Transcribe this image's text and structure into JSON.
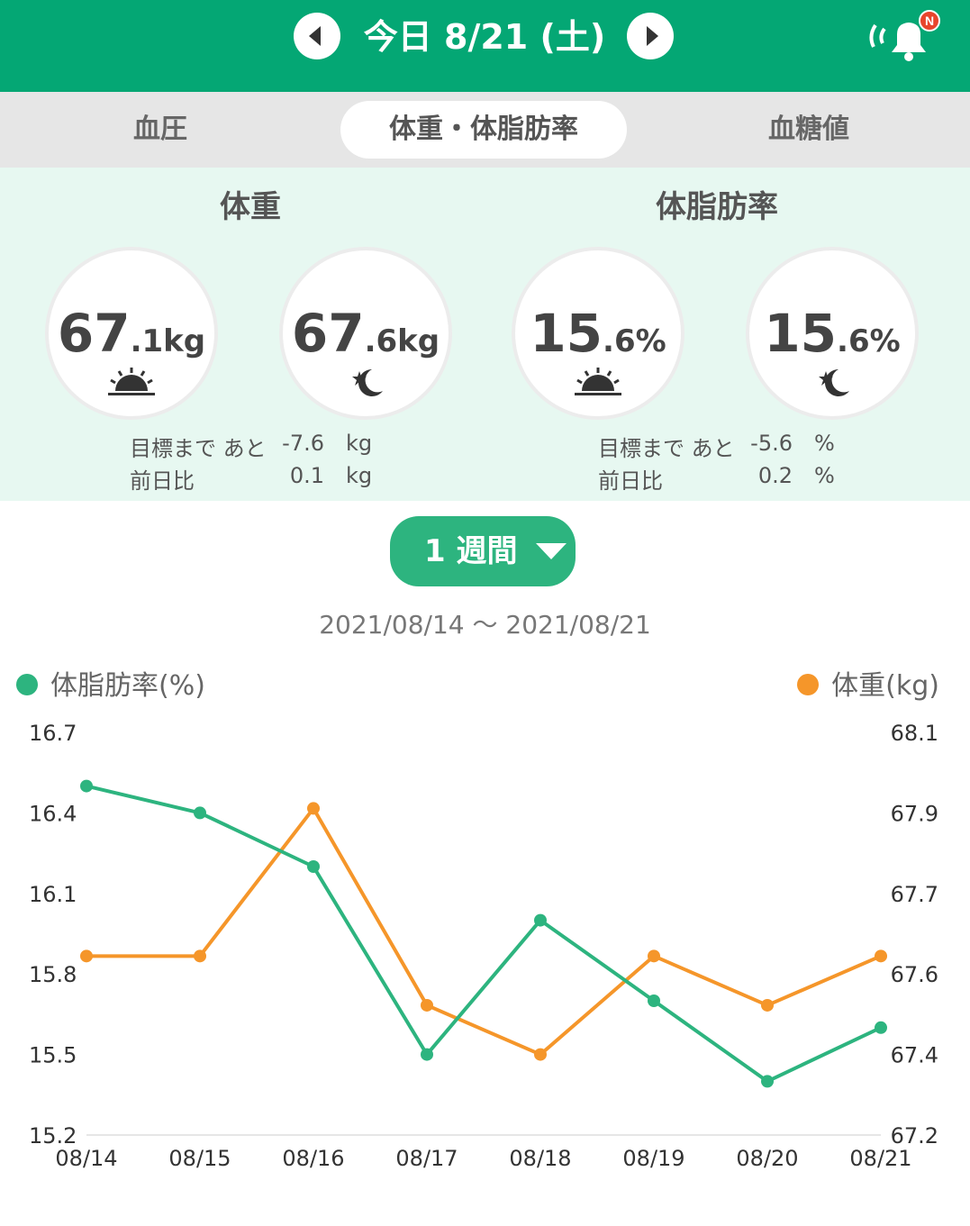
{
  "header": {
    "title": "今日 8/21 (土)",
    "prev_icon": "chevron-left-icon",
    "next_icon": "chevron-right-icon",
    "bell_icon": "bell-icon",
    "badge": "N",
    "colors": {
      "primary": "#04a774",
      "badge": "#e8452c"
    }
  },
  "tabs": [
    {
      "label": "血圧",
      "selected": false
    },
    {
      "label": "体重・体脂肪率",
      "selected": true
    },
    {
      "label": "血糖値",
      "selected": false
    }
  ],
  "weight": {
    "title": "体重",
    "morning": {
      "int": "67",
      "dec": ".1",
      "unit": "kg",
      "icon": "sunrise-icon"
    },
    "night": {
      "int": "67",
      "dec": ".6",
      "unit": "kg",
      "icon": "moon-star-icon"
    },
    "goal_label": "目標まで あと",
    "goal_value": "-7.6",
    "goal_unit": "kg",
    "diff_label": "前日比",
    "diff_value": "0.1",
    "diff_unit": "kg"
  },
  "bodyfat": {
    "title": "体脂肪率",
    "morning": {
      "int": "15",
      "dec": ".6",
      "unit": "%",
      "icon": "sunrise-icon"
    },
    "night": {
      "int": "15",
      "dec": ".6",
      "unit": "%",
      "icon": "moon-star-icon"
    },
    "goal_label": "目標まで あと",
    "goal_value": "-5.6",
    "goal_unit": "%",
    "diff_label": "前日比",
    "diff_value": "0.2",
    "diff_unit": "%"
  },
  "period": {
    "label": "1 週間",
    "icon": "caret-down-icon"
  },
  "range": "2021/08/14 〜 2021/08/21",
  "chart_data": {
    "type": "line",
    "categories": [
      "08/14",
      "08/15",
      "08/16",
      "08/17",
      "08/18",
      "08/19",
      "08/20",
      "08/21"
    ],
    "series": [
      {
        "name": "体脂肪率(%)",
        "axis": "left",
        "color": "#2db47f",
        "values": [
          16.5,
          16.4,
          16.2,
          15.5,
          16.0,
          15.7,
          15.4,
          15.6
        ]
      },
      {
        "name": "体重(kg)",
        "axis": "right",
        "color": "#f5962a",
        "values": [
          67.6,
          67.6,
          67.93,
          67.49,
          67.38,
          67.6,
          67.49,
          67.6
        ]
      }
    ],
    "left_axis": {
      "ticks": [
        "16.7",
        "16.4",
        "16.1",
        "15.8",
        "15.5",
        "15.2"
      ],
      "ylim": [
        15.2,
        16.7
      ]
    },
    "right_axis": {
      "ticks": [
        "68.1",
        "67.9",
        "67.7",
        "67.6",
        "67.4",
        "67.2"
      ],
      "ylim": [
        67.2,
        68.1
      ]
    },
    "legend": "top"
  }
}
